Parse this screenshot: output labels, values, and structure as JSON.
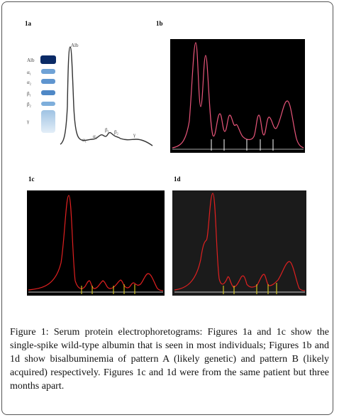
{
  "panels": [
    {
      "label": "1a"
    },
    {
      "label": "1b"
    },
    {
      "label": "1c"
    },
    {
      "label": "1d"
    }
  ],
  "gel_labels": [
    "Alb",
    "α₁",
    "α₂",
    "β₁",
    "β₂",
    "γ"
  ],
  "peak_labels": [
    "Alb",
    "α₁",
    "α₂",
    "β₁",
    "β₂",
    "γ"
  ],
  "caption": {
    "label": "Figure 1:",
    "text": "Serum protein electrophoretograms: Figures 1a and 1c show the single-spike wild-type albumin that is seen in most individuals; Figures 1b and 1d show bisalbuminemia of pattern A (likely genetic) and pattern B (likely acquired) respectively. Figures 1c and 1d were from the same patient but three months apart."
  }
}
